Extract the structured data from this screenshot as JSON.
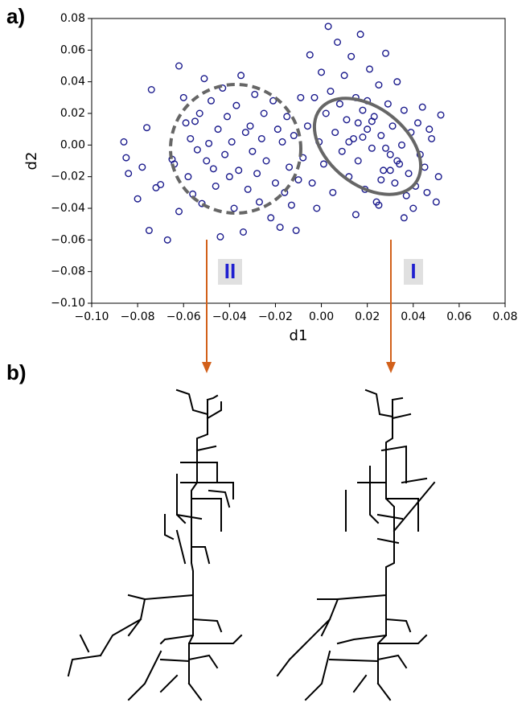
{
  "panel_labels": [
    "a)",
    "b)"
  ],
  "cluster_labels": [
    "II",
    "I"
  ],
  "chart_data": {
    "type": "scatter",
    "x_label": "d1",
    "y_label": "d2",
    "color": "#1a1a8c",
    "xlim": [
      -0.1,
      0.08
    ],
    "ylim": [
      -0.1,
      0.08
    ],
    "xticks": [
      {
        "value": -0.1,
        "label": "−0.10"
      },
      {
        "value": -0.08,
        "label": "−0.08"
      },
      {
        "value": -0.06,
        "label": "−0.06"
      },
      {
        "value": -0.04,
        "label": "−0.04"
      },
      {
        "value": -0.02,
        "label": "−0.02"
      },
      {
        "value": 0,
        "label": "0.00"
      },
      {
        "value": 0.02,
        "label": "0.02"
      },
      {
        "value": 0.04,
        "label": "0.04"
      },
      {
        "value": 0.06,
        "label": "0.06"
      },
      {
        "value": 0.08,
        "label": "0.08"
      }
    ],
    "yticks": [
      {
        "value": 0.08,
        "label": "0.08"
      },
      {
        "value": 0.06,
        "label": "0.06"
      },
      {
        "value": 0.04,
        "label": "0.04"
      },
      {
        "value": 0.02,
        "label": "0.02"
      },
      {
        "value": 0,
        "label": "0.00"
      },
      {
        "value": -0.02,
        "label": "−0.02"
      },
      {
        "value": -0.04,
        "label": "−0.04"
      },
      {
        "value": -0.06,
        "label": "−0.06"
      },
      {
        "value": -0.08,
        "label": "−0.08"
      },
      {
        "value": -0.1,
        "label": "−0.10"
      }
    ],
    "x": [
      -0.086,
      -0.085,
      -0.084,
      -0.08,
      -0.078,
      -0.076,
      -0.075,
      -0.074,
      -0.072,
      -0.07,
      -0.067,
      -0.065,
      -0.064,
      -0.062,
      -0.062,
      -0.06,
      -0.059,
      -0.058,
      -0.057,
      -0.056,
      -0.055,
      -0.054,
      -0.053,
      -0.052,
      -0.051,
      -0.05,
      -0.049,
      -0.048,
      -0.047,
      -0.046,
      -0.045,
      -0.044,
      -0.043,
      -0.042,
      -0.041,
      -0.04,
      -0.039,
      -0.038,
      -0.037,
      -0.036,
      -0.035,
      -0.034,
      -0.033,
      -0.032,
      -0.031,
      -0.03,
      -0.029,
      -0.028,
      -0.027,
      -0.026,
      -0.025,
      -0.024,
      -0.022,
      -0.021,
      -0.02,
      -0.019,
      -0.018,
      -0.017,
      -0.016,
      -0.015,
      -0.014,
      -0.013,
      -0.012,
      -0.011,
      -0.01,
      -0.009,
      -0.008,
      -0.006,
      -0.005,
      -0.004,
      -0.003,
      -0.002,
      -0.001,
      0,
      0.001,
      0.002,
      0.003,
      0.004,
      0.005,
      0.006,
      0.007,
      0.008,
      0.009,
      0.01,
      0.011,
      0.012,
      0.013,
      0.014,
      0.015,
      0.016,
      0.017,
      0.018,
      0.019,
      0.02,
      0.021,
      0.022,
      0.023,
      0.024,
      0.025,
      0.026,
      0.027,
      0.028,
      0.029,
      0.03,
      0.031,
      0.032,
      0.033,
      0.034,
      0.035,
      0.036,
      0.037,
      0.038,
      0.039,
      0.04,
      0.041,
      0.042,
      0.043,
      0.044,
      0.045,
      0.046,
      0.048,
      0.05,
      0.052,
      0.051,
      0.047,
      0.036,
      0.025,
      0.015,
      0.02,
      0.022,
      0.018,
      0.026,
      0.03,
      0.033,
      0.028,
      0.016,
      0.012
    ],
    "values": [
      0.002,
      -0.008,
      -0.018,
      -0.034,
      -0.014,
      0.011,
      -0.054,
      0.035,
      -0.027,
      -0.025,
      -0.06,
      -0.009,
      -0.012,
      0.05,
      -0.042,
      0.03,
      0.014,
      -0.02,
      0.004,
      -0.031,
      0.015,
      -0.003,
      0.02,
      -0.037,
      0.042,
      -0.01,
      0.001,
      0.028,
      -0.015,
      -0.026,
      0.01,
      -0.058,
      0.036,
      -0.006,
      0.018,
      -0.02,
      0.002,
      -0.04,
      0.025,
      -0.016,
      0.044,
      -0.055,
      0.008,
      -0.028,
      0.012,
      -0.004,
      0.032,
      -0.018,
      -0.036,
      0.004,
      0.02,
      -0.01,
      -0.046,
      0.028,
      -0.024,
      0.01,
      -0.052,
      0.002,
      -0.03,
      0.018,
      -0.014,
      -0.038,
      0.006,
      -0.054,
      -0.022,
      0.03,
      -0.008,
      0.012,
      0.057,
      -0.024,
      0.03,
      -0.04,
      0.002,
      0.046,
      -0.012,
      0.02,
      0.075,
      0.034,
      -0.03,
      0.008,
      0.065,
      0.026,
      -0.004,
      0.044,
      0.016,
      -0.02,
      0.056,
      0.004,
      0.03,
      -0.01,
      0.07,
      0.022,
      -0.028,
      0.01,
      0.048,
      -0.002,
      0.018,
      -0.036,
      0.038,
      0.006,
      -0.016,
      0.058,
      0.026,
      -0.006,
      0.012,
      -0.024,
      0.04,
      -0.012,
      0,
      0.022,
      -0.032,
      -0.018,
      0.008,
      -0.04,
      -0.026,
      0.014,
      -0.006,
      0.024,
      -0.014,
      -0.03,
      0.004,
      -0.036,
      0.019,
      -0.02,
      0.01,
      -0.046,
      -0.038,
      -0.044,
      0.028,
      0.015,
      0.005,
      -0.022,
      -0.016,
      -0.01,
      -0.002,
      0.014,
      0.002
    ]
  }
}
